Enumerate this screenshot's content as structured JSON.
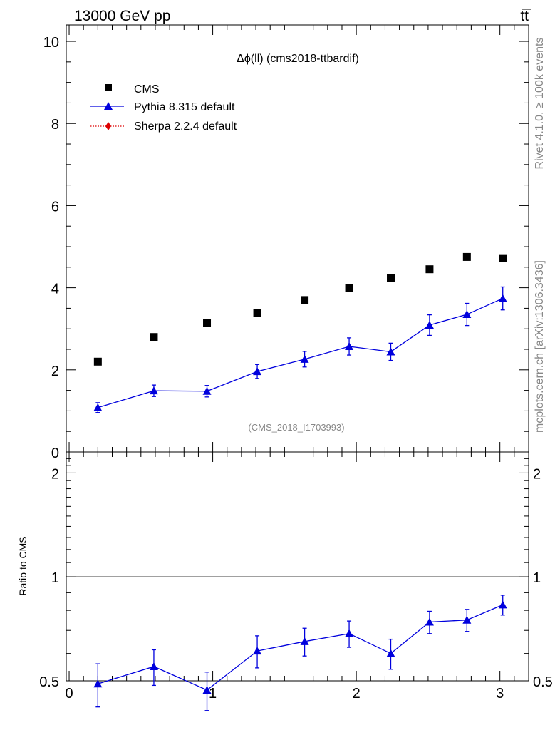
{
  "header": {
    "left": "13000 GeV pp",
    "right": "tt̅"
  },
  "side": {
    "rivet": "Rivet 4.1.0, ≥ 100k events",
    "mcplots": "mcplots.cern.ch [arXiv:1306.3436]"
  },
  "chart_data": [
    {
      "type": "scatter",
      "title": "Δϕ(ll) (cms2018-ttbardif)",
      "watermark": "(CMS_2018_I1703993)",
      "xlabel": "",
      "ylabel": "",
      "xlim": [
        -0.02,
        3.2
      ],
      "ylim": [
        0,
        10.4
      ],
      "yticks": [
        0,
        2,
        4,
        6,
        8,
        10
      ],
      "yticklabels": [
        "0",
        "2",
        "4",
        "6",
        "8",
        "10"
      ],
      "x": [
        0.2,
        0.59,
        0.96,
        1.31,
        1.64,
        1.95,
        2.24,
        2.51,
        2.77,
        3.02
      ],
      "series": [
        {
          "name": "CMS",
          "marker": "square",
          "color": "#000000",
          "values": [
            2.2,
            2.8,
            3.14,
            3.38,
            3.7,
            3.99,
            4.23,
            4.45,
            4.75,
            4.72
          ]
        },
        {
          "name": "Pythia 8.315 default",
          "marker": "triangle",
          "line": "solid",
          "color": "#0000dd",
          "values": [
            1.08,
            1.49,
            1.48,
            1.96,
            2.26,
            2.57,
            2.44,
            3.09,
            3.35,
            3.74
          ],
          "errors": [
            0.12,
            0.14,
            0.14,
            0.17,
            0.19,
            0.21,
            0.21,
            0.25,
            0.27,
            0.28
          ]
        },
        {
          "name": "Sherpa 2.2.4 default",
          "marker": "diamond",
          "line": "dotted",
          "color": "#dd0000",
          "values": [],
          "errors": []
        }
      ]
    },
    {
      "type": "line",
      "title": "",
      "xlabel": "",
      "ylabel": "Ratio to CMS",
      "xlim": [
        -0.02,
        3.2
      ],
      "ylim": [
        0.5,
        2.3
      ],
      "yscale": "log",
      "yticks": [
        0.5,
        1,
        2
      ],
      "yticklabels": [
        "0.5",
        "1",
        "2"
      ],
      "xticks": [
        0,
        1,
        2,
        3
      ],
      "xticklabels": [
        "0",
        "1",
        "2",
        "3"
      ],
      "reference": 1,
      "x": [
        0.2,
        0.59,
        0.96,
        1.31,
        1.64,
        1.95,
        2.24,
        2.51,
        2.77,
        3.02
      ],
      "series": [
        {
          "name": "Pythia 8.315 default",
          "marker": "triangle",
          "color": "#0000dd",
          "values": [
            0.49,
            0.55,
            0.47,
            0.61,
            0.65,
            0.685,
            0.6,
            0.74,
            0.75,
            0.83
          ],
          "errors": [
            0.07,
            0.065,
            0.06,
            0.065,
            0.06,
            0.06,
            0.06,
            0.055,
            0.055,
            0.055
          ]
        }
      ]
    }
  ]
}
